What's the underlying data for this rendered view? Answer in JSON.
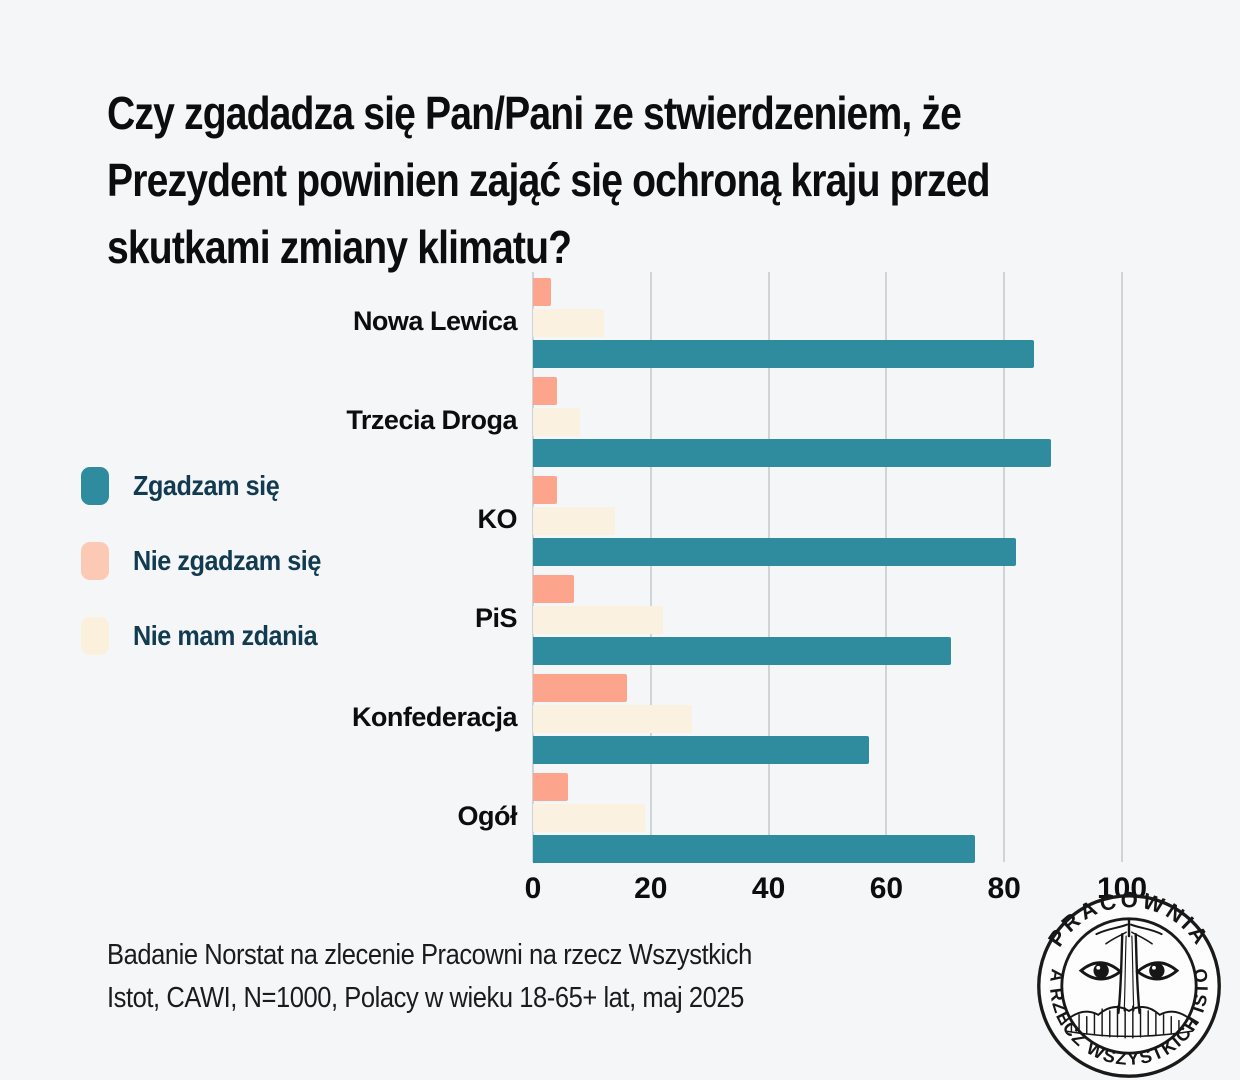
{
  "page": {
    "background": "#f4f6f8"
  },
  "title": {
    "lines": [
      "Czy zgadadza się Pan/Pani ze stwierdzeniem, że",
      "Prezydent powinien zająć się ochroną kraju przed",
      "skutkami zmiany klimatu?"
    ],
    "color": "#0d0d0d"
  },
  "legend": {
    "text_color": "#123a51",
    "items": [
      {
        "label": "Zgadzam się",
        "color": "#2f8c9e"
      },
      {
        "label": "Nie zgadzam się",
        "color": "#fcc9b5"
      },
      {
        "label": "Nie mam zdania",
        "color": "#faf0dc"
      }
    ]
  },
  "chart_data": {
    "type": "bar",
    "orientation": "horizontal",
    "title": "Czy zgadadza się Pan/Pani ze stwierdzeniem, że Prezydent powinien zająć się ochroną kraju przed skutkami zmiany klimatu?",
    "categories": [
      "Nowa Lewica",
      "Trzecia Droga",
      "KO",
      "PiS",
      "Konfederacja",
      "Ogół"
    ],
    "series": [
      {
        "name": "Nie zgadzam się",
        "color": "#fda58c",
        "values": [
          3,
          4,
          4,
          7,
          16,
          6
        ]
      },
      {
        "name": "Nie mam zdania",
        "color": "#faf1e1",
        "values": [
          12,
          8,
          14,
          22,
          27,
          19
        ]
      },
      {
        "name": "Zgadzam się",
        "color": "#2f8c9e",
        "values": [
          85,
          88,
          82,
          71,
          57,
          75
        ]
      }
    ],
    "bar_order_top_to_bottom": [
      "Nie zgadzam się",
      "Nie mam zdania",
      "Zgadzam się"
    ],
    "xlim": [
      0,
      100
    ],
    "xticks": [
      "0",
      "20",
      "40",
      "60",
      "80",
      "100"
    ],
    "grid": "vertical",
    "gridline_color": "#cfd4d8",
    "legend_position": "left"
  },
  "footer": {
    "lines": [
      "Badanie Norstat na zlecenie Pracowni na rzecz Wszystkich",
      "Istot, CAWI, N=1000, Polacy w wieku 18-65+ lat, maj 2025"
    ]
  },
  "logo": {
    "top_text": "PRACOWNIA",
    "bottom_text": "NA RZECZ WSZYSTKICH ISTOT"
  }
}
